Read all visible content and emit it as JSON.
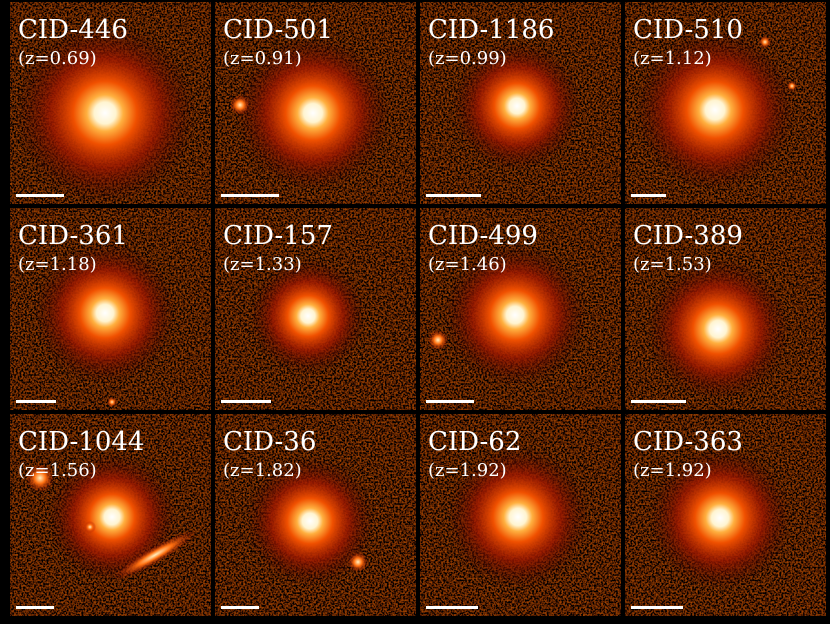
{
  "panels": [
    {
      "name": "CID-446",
      "redshift": "(z=0.69)"
    },
    {
      "name": "CID-501",
      "redshift": "(z=0.91)"
    },
    {
      "name": "CID-1186",
      "redshift": "(z=0.99)"
    },
    {
      "name": "CID-510",
      "redshift": "(z=1.12)"
    },
    {
      "name": "CID-361",
      "redshift": "(z=1.18)"
    },
    {
      "name": "CID-157",
      "redshift": "(z=1.33)"
    },
    {
      "name": "CID-499",
      "redshift": "(z=1.46)"
    },
    {
      "name": "CID-389",
      "redshift": "(z=1.53)"
    },
    {
      "name": "CID-1044",
      "redshift": "(z=1.56)"
    },
    {
      "name": "CID-36",
      "redshift": "(z=1.82)"
    },
    {
      "name": "CID-62",
      "redshift": "(z=1.92)"
    },
    {
      "name": "CID-363",
      "redshift": "(z=1.92)"
    }
  ]
}
